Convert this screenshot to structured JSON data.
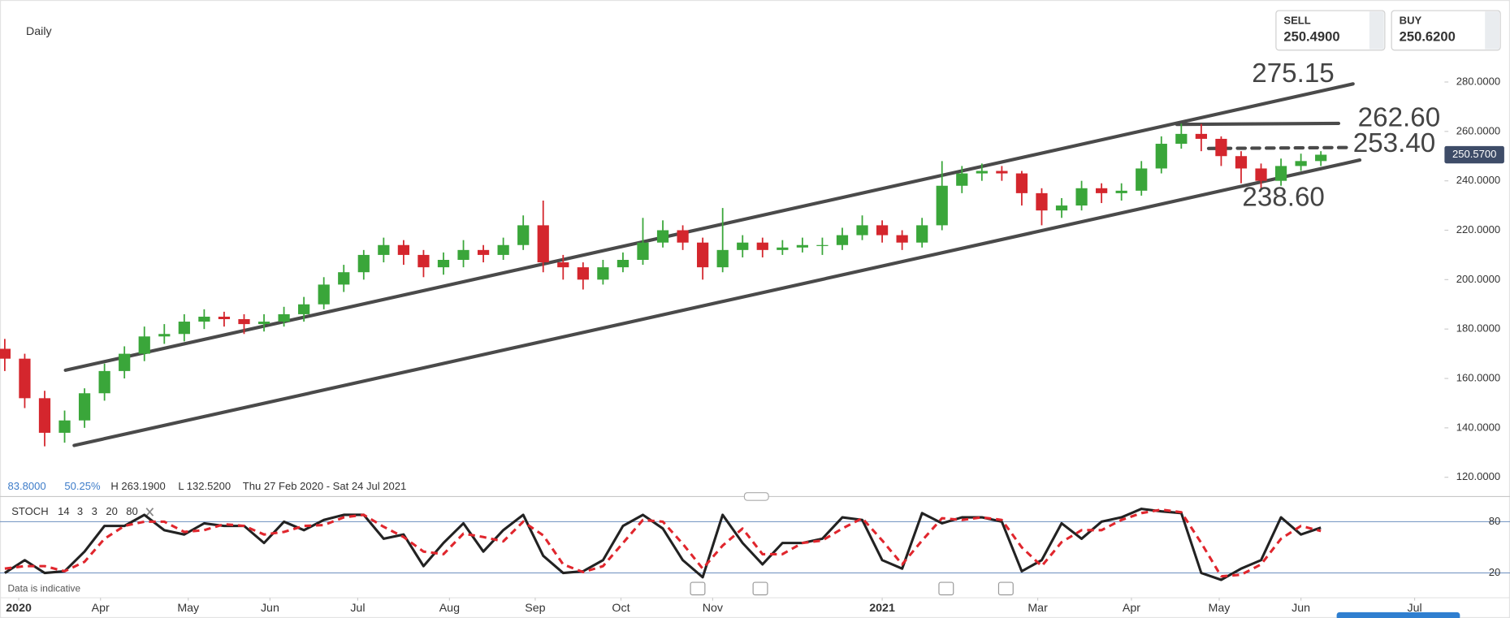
{
  "header": {
    "timeframe": "Daily",
    "info": [
      "83.8000",
      "50.25%",
      "H 263.1900",
      "L 132.5200",
      "Thu 27 Feb 2020 - Sat 24 Jul 2021"
    ],
    "note": "Data is indicative"
  },
  "quote": {
    "sell_label": "SELL",
    "sell": "250.4900",
    "buy_label": "BUY",
    "buy": "250.6200"
  },
  "chart_data": [
    {
      "type": "candlestick",
      "up_color": "#3aa63a",
      "down_color": "#d4262d",
      "open": [
        172,
        168,
        152,
        138,
        143,
        154,
        163,
        170,
        177,
        178,
        183,
        185,
        184,
        182,
        183,
        186,
        190,
        198,
        203,
        210,
        214,
        210,
        205,
        208,
        212,
        210,
        214,
        222,
        207,
        205,
        200,
        205,
        208,
        215,
        220,
        215,
        205,
        212,
        215,
        212,
        213,
        214,
        214,
        218,
        222,
        218,
        215,
        222,
        238,
        243,
        244,
        243,
        235,
        228,
        230,
        237,
        235,
        236,
        245,
        255,
        259,
        257,
        250,
        245,
        240,
        246,
        248
      ],
      "high": [
        176,
        170,
        155,
        147,
        156,
        166,
        173,
        181,
        182,
        186,
        188,
        187,
        186,
        186,
        189,
        193,
        201,
        206,
        212,
        217,
        216,
        212,
        211,
        216,
        214,
        217,
        226,
        232,
        210,
        207,
        208,
        211,
        225,
        224,
        222,
        217,
        229,
        218,
        217,
        216,
        217,
        217,
        221,
        226,
        224,
        220,
        225,
        248,
        246,
        247,
        246,
        244,
        237,
        233,
        240,
        239,
        239,
        248,
        258,
        263.19,
        263,
        258,
        252,
        247,
        249,
        251,
        252
      ],
      "low": [
        163,
        148,
        132.52,
        134,
        140,
        151,
        160,
        167,
        174,
        175,
        180,
        181,
        178,
        179,
        181,
        183,
        188,
        195,
        200,
        207,
        206,
        201,
        202,
        205,
        207,
        208,
        212,
        203,
        200,
        196,
        198,
        203,
        206,
        213,
        212,
        200,
        203,
        209,
        209,
        210,
        211,
        210,
        212,
        216,
        215,
        212,
        213,
        220,
        235,
        240,
        240,
        230,
        222,
        225,
        228,
        231,
        232,
        234,
        243,
        253,
        252,
        246,
        239,
        237,
        238,
        244,
        246
      ],
      "close": [
        168,
        152,
        138,
        143,
        154,
        163,
        170,
        177,
        178,
        183,
        185,
        184,
        182,
        183,
        186,
        190,
        198,
        203,
        210,
        214,
        210,
        205,
        208,
        212,
        210,
        214,
        222,
        207,
        205,
        200,
        205,
        208,
        215,
        220,
        215,
        205,
        212,
        215,
        212,
        213,
        214,
        214,
        218,
        222,
        218,
        215,
        222,
        238,
        243,
        244,
        243,
        235,
        228,
        230,
        237,
        235,
        236,
        245,
        255,
        259,
        257,
        250,
        245,
        240,
        246,
        248,
        250.57
      ],
      "xlim": [
        -0.24,
        72.2
      ],
      "ylim": [
        112.2,
        313.2
      ],
      "yticks": [
        {
          "value": 120,
          "label": "120.0000"
        },
        {
          "value": 140,
          "label": "140.0000"
        },
        {
          "value": 160,
          "label": "160.0000"
        },
        {
          "value": 180,
          "label": "180.0000"
        },
        {
          "value": 200,
          "label": "200.0000"
        },
        {
          "value": 220,
          "label": "220.0000"
        },
        {
          "value": 240,
          "label": "240.0000"
        },
        {
          "value": 260,
          "label": "260.0000"
        },
        {
          "value": 280,
          "label": "280.0000"
        }
      ],
      "last_price": {
        "value": 250.57,
        "label": "250.5700"
      },
      "annotations": [
        275.15,
        {
          "value": 262.6,
          "label": "262.60"
        },
        {
          "value": 253.4,
          "label": "253.40"
        },
        {
          "value": 238.6,
          "label": "238.60"
        }
      ]
    },
    {
      "type": "line",
      "indicator": {
        "name": "STOCH",
        "params": [
          14,
          3,
          3,
          20,
          80
        ]
      },
      "series": [
        {
          "color": "#222222",
          "values": [
            20,
            35,
            20,
            22,
            45,
            75,
            75,
            88,
            70,
            65,
            78,
            75,
            75,
            55,
            80,
            70,
            82,
            88,
            88,
            60,
            65,
            28,
            55,
            78,
            45,
            70,
            88,
            40,
            20,
            22,
            35,
            75,
            88,
            72,
            35,
            15,
            88,
            55,
            30,
            55,
            55,
            60,
            85,
            82,
            35,
            25,
            90,
            78,
            85,
            85,
            80,
            22,
            35,
            78,
            60,
            80,
            85,
            95,
            92,
            90,
            20,
            12,
            25,
            35,
            85,
            65,
            73
          ]
        },
        {
          "color": "#e0262d",
          "dashed": true,
          "values": [
            25,
            28,
            28,
            22,
            33,
            60,
            75,
            80,
            80,
            68,
            70,
            77,
            75,
            65,
            68,
            75,
            76,
            85,
            88,
            74,
            62,
            45,
            42,
            66,
            62,
            57,
            80,
            64,
            30,
            21,
            28,
            55,
            82,
            80,
            54,
            25,
            52,
            72,
            42,
            42,
            55,
            58,
            72,
            84,
            58,
            30,
            58,
            84,
            82,
            85,
            82,
            50,
            28,
            56,
            70,
            70,
            82,
            90,
            94,
            91,
            55,
            16,
            18,
            30,
            60,
            75,
            69
          ]
        }
      ],
      "xlim": [
        -0.24,
        72.2
      ],
      "ylim": [
        -9,
        106
      ],
      "yticks": [
        20,
        80
      ],
      "grid": true,
      "xticks": [
        {
          "value": 0.7,
          "label": "2020"
        },
        {
          "value": 4.8,
          "label": "Apr"
        },
        {
          "value": 9.2,
          "label": "May"
        },
        {
          "value": 13.3,
          "label": "Jun"
        },
        {
          "value": 17.7,
          "label": "Jul"
        },
        {
          "value": 22.3,
          "label": "Aug"
        },
        {
          "value": 26.6,
          "label": "Sep"
        },
        {
          "value": 30.9,
          "label": "Oct"
        },
        {
          "value": 35.5,
          "label": "Nov"
        },
        {
          "value": 44,
          "label": "2021"
        },
        {
          "value": 51.8,
          "label": "Mar"
        },
        {
          "value": 56.5,
          "label": "Apr"
        },
        {
          "value": 60.9,
          "label": "May"
        },
        {
          "value": 65,
          "label": "Jun"
        },
        {
          "value": 70.7,
          "label": "Jul"
        }
      ]
    }
  ]
}
